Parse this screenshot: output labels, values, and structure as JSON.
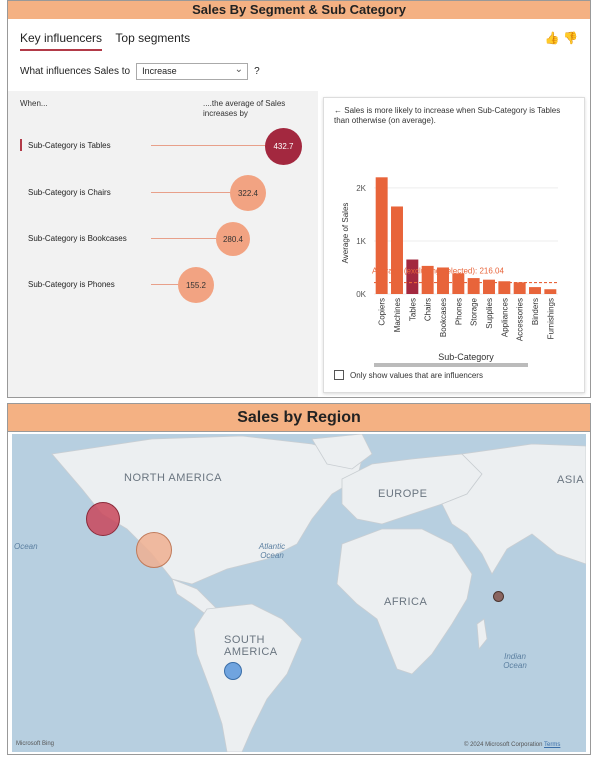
{
  "panel1": {
    "title": "Sales By Segment & Sub Category",
    "tabs": [
      {
        "label": "Key influencers"
      },
      {
        "label": "Top segments"
      }
    ],
    "question_prefix": "What influences Sales to",
    "question_value": "Increase",
    "question_suffix": "?",
    "col_when": "When...",
    "col_avg": "....the average of Sales increases by",
    "influencers": [
      {
        "label": "Sub-Category is Tables",
        "value": "432.7",
        "selected": true
      },
      {
        "label": "Sub-Category is Chairs",
        "value": "322.4",
        "selected": false
      },
      {
        "label": "Sub-Category is Bookcases",
        "value": "280.4",
        "selected": false
      },
      {
        "label": "Sub-Category is Phones",
        "value": "155.2",
        "selected": false
      }
    ],
    "detail_text": "Sales is more likely to increase when Sub-Category is Tables than otherwise (on average).",
    "checkbox_label": "Only show values that are influencers"
  },
  "chart_data": {
    "type": "bar",
    "categories": [
      "Copiers",
      "Machines",
      "Tables",
      "Chairs",
      "Bookcases",
      "Phones",
      "Storage",
      "Supplies",
      "Appliances",
      "Accessories",
      "Binders",
      "Furnishings"
    ],
    "values": [
      2200,
      1650,
      650,
      530,
      500,
      390,
      300,
      270,
      240,
      220,
      130,
      90
    ],
    "highlight_index": 2,
    "ylabel": "Average of Sales",
    "xlabel": "Sub-Category",
    "yticks": [
      "0K",
      "1K",
      "2K"
    ],
    "ylim": [
      0,
      2300
    ],
    "reference_value": 216.04,
    "reference_label": "Average (excluding selected): 216.04",
    "colors": {
      "bar": "#e8643a",
      "highlight": "#a3283f",
      "ref": "#e8643a"
    }
  },
  "panel2": {
    "title": "Sales by Region",
    "labels": {
      "north_america": "NORTH AMERICA",
      "south_america": "SOUTH AMERICA",
      "europe": "EUROPE",
      "africa": "AFRICA",
      "asia": "ASIA"
    },
    "oceans": {
      "ocean_left": "Ocean",
      "atlantic": "Atlantic Ocean",
      "indian": "Indian Ocean"
    },
    "footer_left": "Microsoft Bing",
    "footer_right": "© 2024 Microsoft Corporation",
    "footer_terms": "Terms"
  }
}
